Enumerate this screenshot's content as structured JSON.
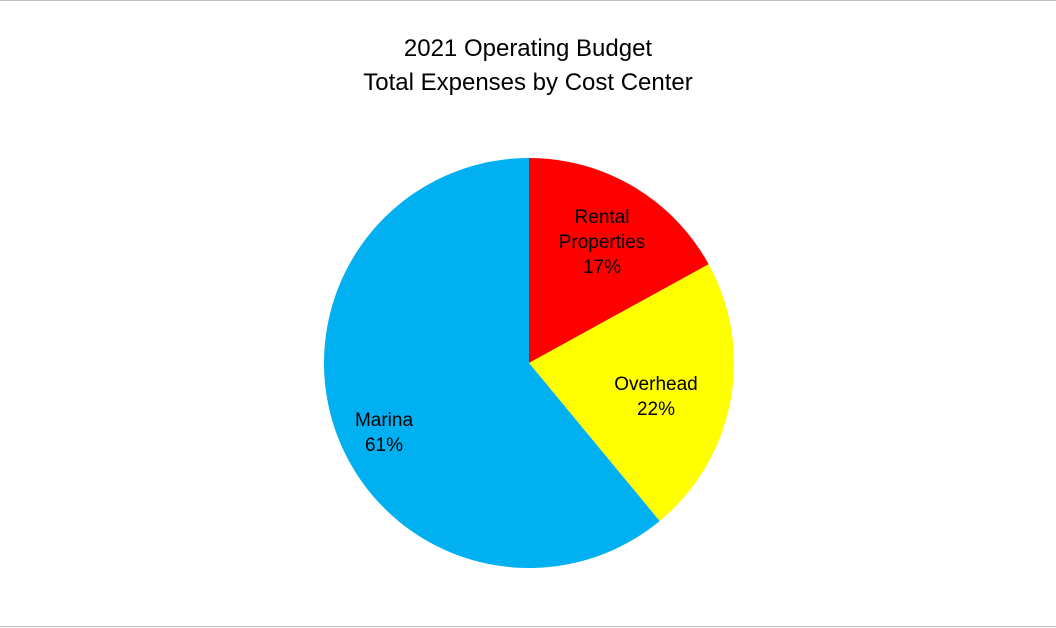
{
  "chart_data": {
    "type": "pie",
    "title": "2021 Operating Budget",
    "subtitle": "Total Expenses by Cost Center",
    "slices": [
      {
        "label_lines": [
          "Rental",
          "Properties"
        ],
        "value": 17,
        "value_text": "17%",
        "color": "#ff0000"
      },
      {
        "label_lines": [
          "Overhead"
        ],
        "value": 22,
        "value_text": "22%",
        "color": "#ffff00"
      },
      {
        "label_lines": [
          "Marina"
        ],
        "value": 61,
        "value_text": "61%",
        "color": "#00b0f0"
      }
    ],
    "start_angle": "12 o'clock",
    "direction": "clockwise",
    "legend": "none"
  }
}
